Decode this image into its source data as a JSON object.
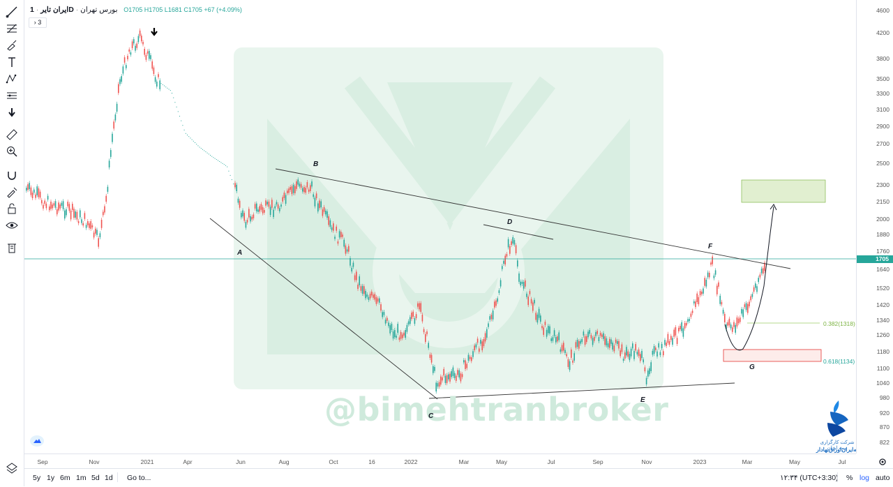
{
  "symbol": {
    "name": "ایران تایر",
    "interval": "1D",
    "exchange": "بورس تهران",
    "ohlc": "O1705  H1705  L1681  C1705  +67 (+4.09%)",
    "indicator_count": "3"
  },
  "price_axis": {
    "ticks": [
      "4600",
      "4200",
      "3800",
      "3500",
      "3300",
      "3100",
      "2900",
      "2700",
      "2500",
      "2300",
      "2150",
      "2000",
      "1880",
      "1760",
      "1640",
      "1520",
      "1420",
      "1340",
      "1260",
      "1180",
      "1100",
      "1040",
      "980",
      "920",
      "870",
      "822"
    ],
    "last_price": "1705"
  },
  "time_axis": {
    "ticks": [
      "Sep",
      "Nov",
      "2021",
      "Apr",
      "Jun",
      "Aug",
      "Oct",
      "16",
      "2022",
      "Mar",
      "May",
      "Jul",
      "Sep",
      "Nov",
      "2023",
      "Mar",
      "May",
      "Jul"
    ]
  },
  "annotations": {
    "points": [
      "A",
      "B",
      "C",
      "D",
      "E",
      "F",
      "G"
    ],
    "fib_382": "0.382(1318)",
    "fib_618": "0.618(1134)"
  },
  "watermark": "@bimehtranbroker",
  "brand": {
    "line1": "شرکت کارگزاری بیمه ایران",
    "line2": "بیمه‌ایران‌اوراق‌بهادار"
  },
  "bottom_bar": {
    "ranges": [
      "5y",
      "1y",
      "6m",
      "1m",
      "5d",
      "1d"
    ],
    "goto": "Go to...",
    "clock": "۱۲:۳۴ (UTC+3:30)",
    "percent": "%",
    "log": "log",
    "auto": "auto"
  },
  "colors": {
    "up": "#26a69a",
    "down": "#ef5350",
    "accent": "#2962ff"
  }
}
